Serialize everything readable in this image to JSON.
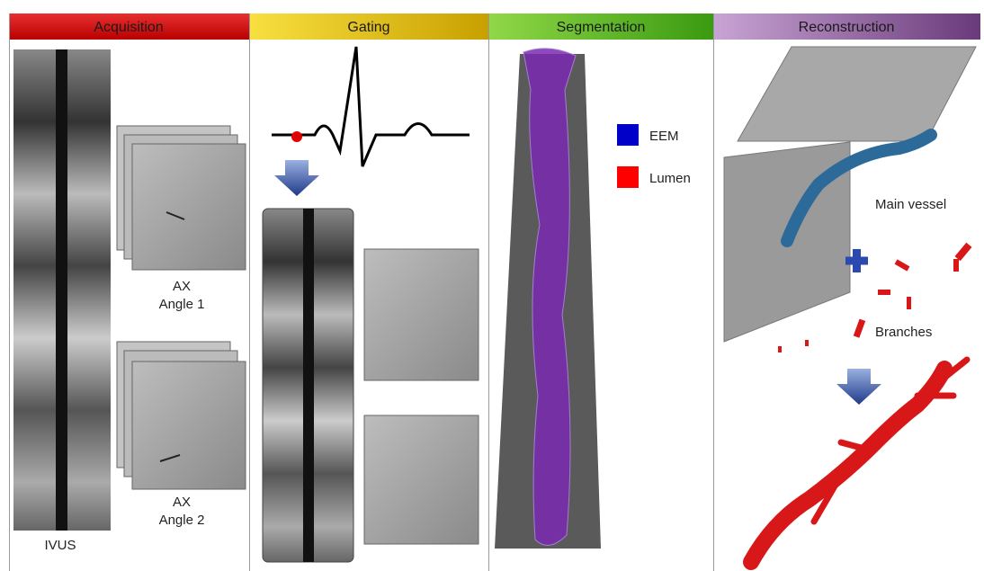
{
  "acquisition": {
    "title": "Acquisition",
    "angle1": {
      "line1": "AX",
      "line2": "Angle 1"
    },
    "angle2": {
      "line1": "AX",
      "line2": "Angle 2"
    },
    "ivus": "IVUS"
  },
  "gating": {
    "title": "Gating"
  },
  "segmentation": {
    "title": "Segmentation",
    "legend": [
      {
        "label": "EEM",
        "color": "#0000c8"
      },
      {
        "label": "Lumen",
        "color": "#ff0000"
      }
    ]
  },
  "reconstruction": {
    "title": "Reconstruction",
    "main_vessel": "Main vessel",
    "branches": "Branches"
  }
}
